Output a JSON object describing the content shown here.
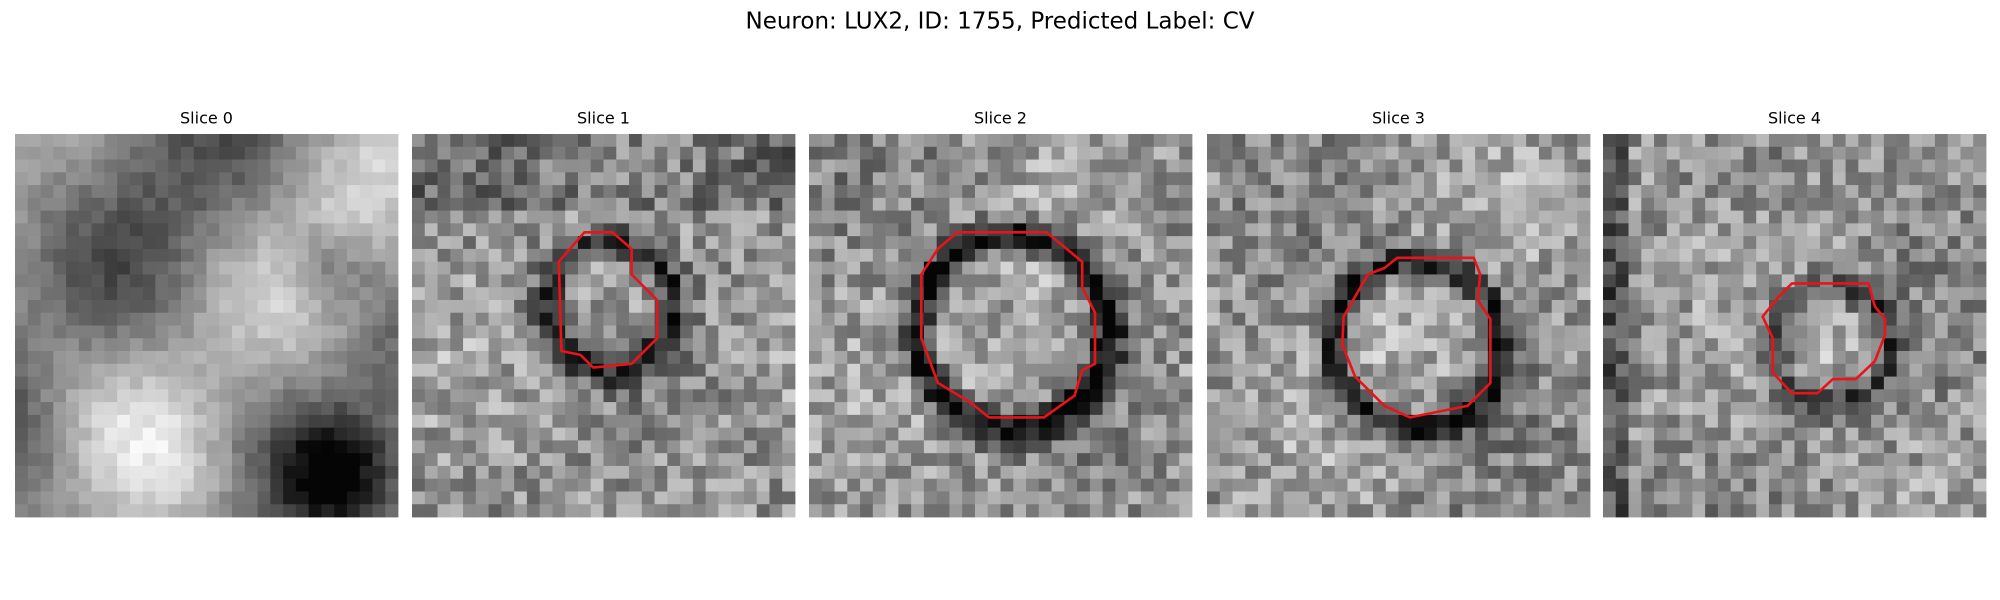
{
  "title": "Neuron: LUX2, ID: 1755, Predicted Label: CV",
  "panels": [
    {
      "title": "Slice 0"
    },
    {
      "title": "Slice 1"
    },
    {
      "title": "Slice 2"
    },
    {
      "title": "Slice 3"
    },
    {
      "title": "Slice 4"
    }
  ]
}
